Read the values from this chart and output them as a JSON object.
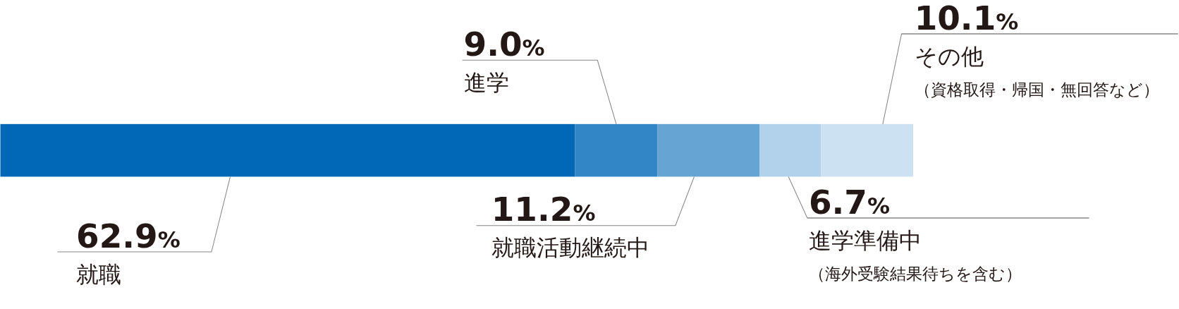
{
  "chart_data": {
    "type": "bar",
    "orientation": "horizontal",
    "stacked": true,
    "categories": [
      null
    ],
    "xlim": [
      0,
      100
    ],
    "series": [
      {
        "name": "就職",
        "color": "#0068b7",
        "values": [
          62.9
        ],
        "value_labels": [
          "62.9%"
        ]
      },
      {
        "name": "進学",
        "color": "#3386c6",
        "values": [
          9.0
        ],
        "value_labels": [
          "9.0%"
        ]
      },
      {
        "name": "就職活動継続中",
        "color": "#66a4d4",
        "values": [
          11.2
        ],
        "value_labels": [
          "11.2%"
        ]
      },
      {
        "name": "進学準備中（海外受験結果待ちを含む）",
        "color": "#b2d1ea",
        "values": [
          6.7
        ],
        "value_labels": [
          "6.7%"
        ]
      },
      {
        "name": "その他（資格取得・帰国・無回答など）",
        "color": "#cce1f2",
        "values": [
          10.1
        ],
        "value_labels": [
          "10.1%"
        ]
      }
    ]
  }
}
